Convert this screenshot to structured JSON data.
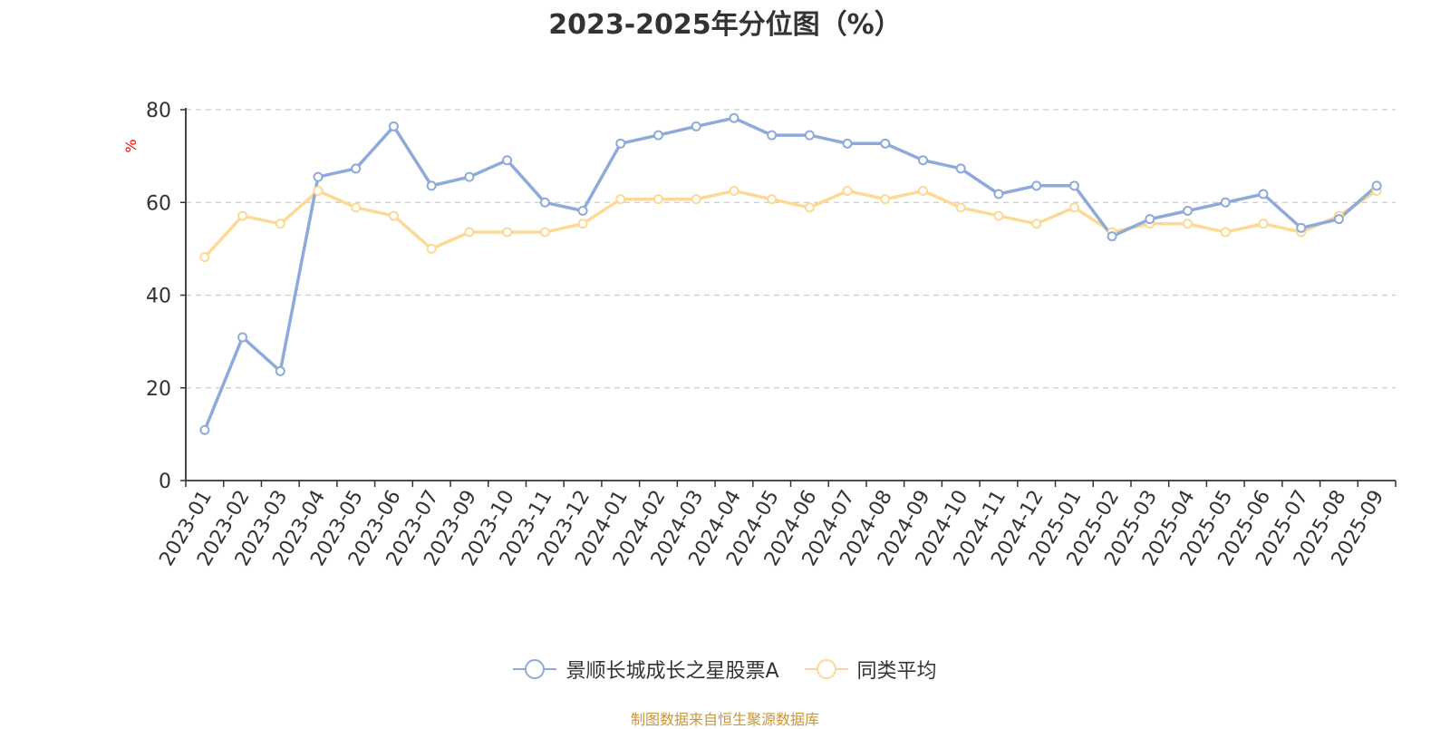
{
  "chart_data": {
    "type": "line",
    "title": "2023-2025年分位图（%）",
    "ylabel": "%",
    "ylim": [
      0,
      80
    ],
    "yticks": [
      0,
      20,
      40,
      60,
      80
    ],
    "grid": true,
    "legend_position": "bottom",
    "categories": [
      "2023-01",
      "2023-02",
      "2023-03",
      "2023-04",
      "2023-05",
      "2023-06",
      "2023-07",
      "2023-09",
      "2023-10",
      "2023-11",
      "2023-12",
      "2024-01",
      "2024-02",
      "2024-03",
      "2024-04",
      "2024-05",
      "2024-06",
      "2024-07",
      "2024-08",
      "2024-09",
      "2024-10",
      "2024-11",
      "2024-12",
      "2025-01",
      "2025-02",
      "2025-03",
      "2025-04",
      "2025-05",
      "2025-06",
      "2025-07",
      "2025-08",
      "2025-09"
    ],
    "series": [
      {
        "name": "景顺长城成长之星股票A",
        "color": "#8eaadb",
        "values": [
          10.9,
          30.9,
          23.6,
          65.5,
          67.3,
          76.4,
          63.6,
          65.5,
          69.1,
          60.0,
          58.2,
          72.7,
          74.5,
          76.4,
          78.2,
          74.5,
          74.5,
          72.7,
          72.7,
          69.1,
          67.3,
          61.8,
          63.6,
          63.6,
          52.7,
          56.4,
          58.2,
          60.0,
          61.8,
          54.5,
          56.4,
          63.6
        ]
      },
      {
        "name": "同类平均",
        "color": "#fcd995",
        "values": [
          48.2,
          57.1,
          55.4,
          62.5,
          58.9,
          57.1,
          50.0,
          53.6,
          53.6,
          53.6,
          55.4,
          60.7,
          60.7,
          60.7,
          62.5,
          60.7,
          58.9,
          62.5,
          60.7,
          62.5,
          58.9,
          57.1,
          55.4,
          58.9,
          53.6,
          55.4,
          55.4,
          53.6,
          55.4,
          53.6,
          57.1,
          62.5
        ]
      }
    ]
  },
  "footer": {
    "source": "制图数据来自恒生聚源数据库"
  },
  "colors": {
    "axis": "#333333",
    "grid": "#cccccc",
    "ylabel": "#ff0000",
    "source_text": "#c9963a"
  }
}
